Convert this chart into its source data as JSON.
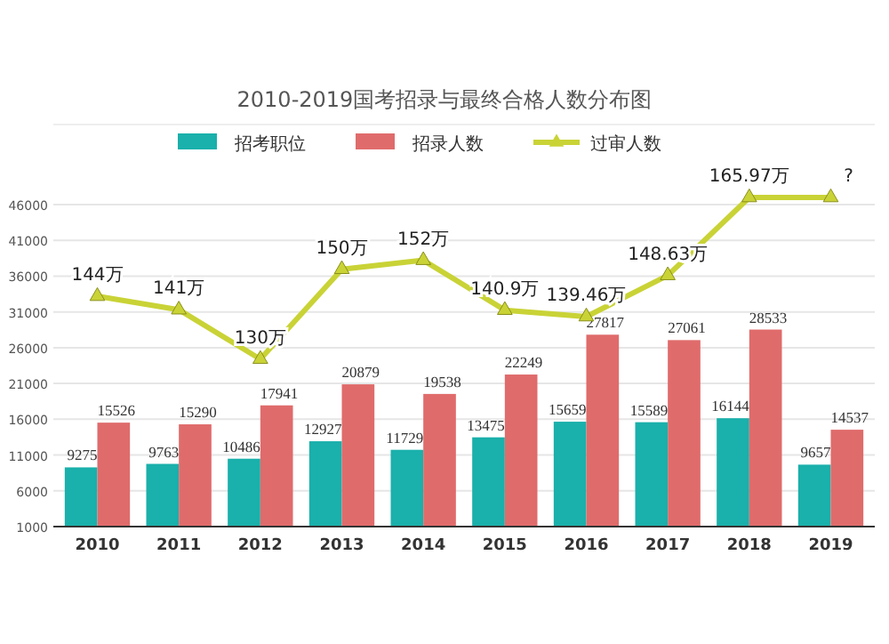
{
  "chart_data": {
    "type": "bar",
    "title": "2010-2019国考招录与最终合格人数分布图",
    "categories": [
      "2010",
      "2011",
      "2012",
      "2013",
      "2014",
      "2015",
      "2016",
      "2017",
      "2018",
      "2019"
    ],
    "series": [
      {
        "name": "招考职位",
        "color": "#1ab0ab",
        "values": [
          9275,
          9763,
          10486,
          12927,
          11729,
          13475,
          15659,
          15589,
          16144,
          9657
        ],
        "value_labels": [
          "9275",
          "9763",
          "10486",
          "12927",
          "11729",
          "13475",
          "15659",
          "15589",
          "16144",
          "9657"
        ]
      },
      {
        "name": "招录人数",
        "color": "#e06b6b",
        "values": [
          15526,
          15290,
          17941,
          20879,
          19538,
          22249,
          27817,
          27061,
          28533,
          14537
        ],
        "value_labels": [
          "15526",
          "15290",
          "17941",
          "20879",
          "19538",
          "22249",
          "27817",
          "27061",
          "28533",
          "14537"
        ]
      },
      {
        "name": "过审人数",
        "type": "line",
        "axis": "y2",
        "color": "#c9d336",
        "marker": "triangle",
        "values": [
          144,
          141,
          130,
          150,
          152,
          140.9,
          139.46,
          148.63,
          165.97,
          165.97
        ],
        "value_labels": [
          "144万",
          "141万",
          "130万",
          "150万",
          "152万",
          "140.9万",
          "139.46万",
          "148.63万",
          "165.97万",
          "?"
        ]
      }
    ],
    "ylim": [
      1000,
      46000
    ],
    "yticks": [
      1000,
      6000,
      11000,
      16000,
      21000,
      26000,
      31000,
      36000,
      41000,
      46000
    ],
    "grid": "y",
    "legend": "top"
  }
}
